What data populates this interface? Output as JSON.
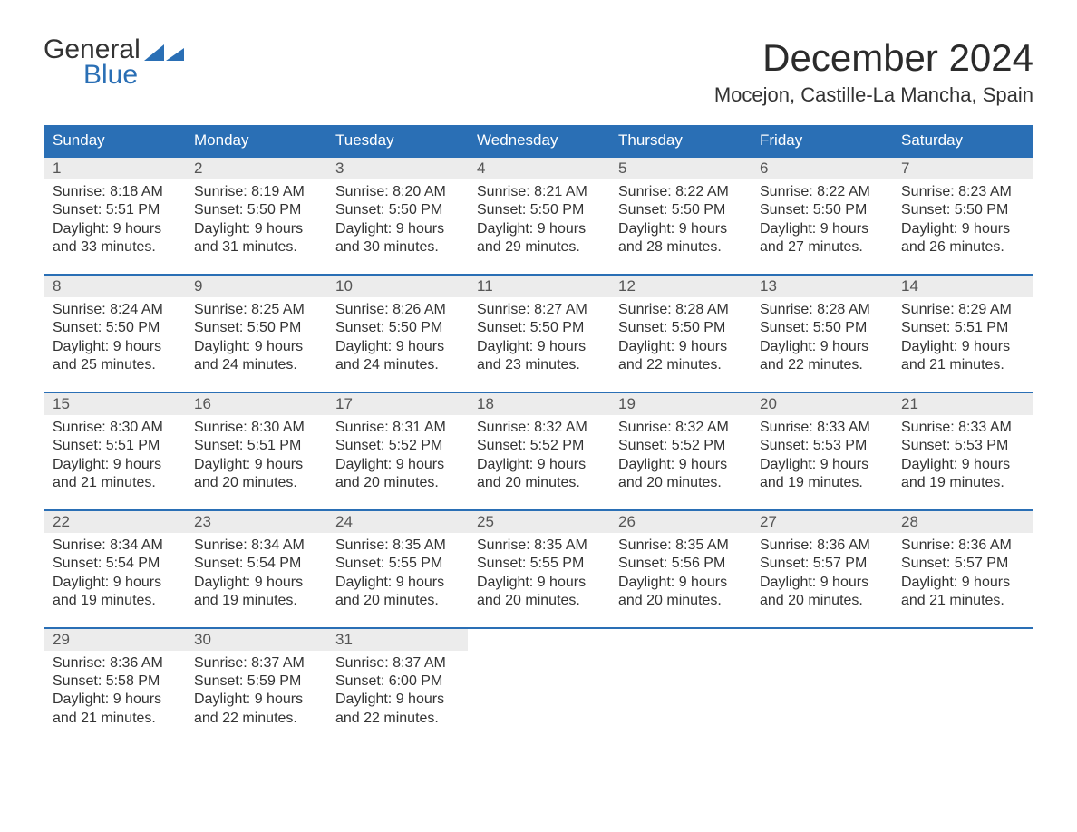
{
  "brand": {
    "word1": "General",
    "word2": "Blue",
    "tri_color": "#2a6fb5"
  },
  "title": "December 2024",
  "location": "Mocejon, Castille-La Mancha, Spain",
  "colors": {
    "header_bg": "#2a6fb5",
    "header_text": "#ffffff",
    "row_border": "#2a6fb5",
    "daynum_bg": "#ececec",
    "text": "#333333",
    "background": "#ffffff"
  },
  "font": {
    "family": "Arial",
    "body_size": 16,
    "title_size": 42,
    "location_size": 22,
    "header_size": 17
  },
  "weekdays": [
    "Sunday",
    "Monday",
    "Tuesday",
    "Wednesday",
    "Thursday",
    "Friday",
    "Saturday"
  ],
  "weeks": [
    [
      {
        "n": "1",
        "sr": "Sunrise: 8:18 AM",
        "ss": "Sunset: 5:51 PM",
        "d1": "Daylight: 9 hours",
        "d2": "and 33 minutes."
      },
      {
        "n": "2",
        "sr": "Sunrise: 8:19 AM",
        "ss": "Sunset: 5:50 PM",
        "d1": "Daylight: 9 hours",
        "d2": "and 31 minutes."
      },
      {
        "n": "3",
        "sr": "Sunrise: 8:20 AM",
        "ss": "Sunset: 5:50 PM",
        "d1": "Daylight: 9 hours",
        "d2": "and 30 minutes."
      },
      {
        "n": "4",
        "sr": "Sunrise: 8:21 AM",
        "ss": "Sunset: 5:50 PM",
        "d1": "Daylight: 9 hours",
        "d2": "and 29 minutes."
      },
      {
        "n": "5",
        "sr": "Sunrise: 8:22 AM",
        "ss": "Sunset: 5:50 PM",
        "d1": "Daylight: 9 hours",
        "d2": "and 28 minutes."
      },
      {
        "n": "6",
        "sr": "Sunrise: 8:22 AM",
        "ss": "Sunset: 5:50 PM",
        "d1": "Daylight: 9 hours",
        "d2": "and 27 minutes."
      },
      {
        "n": "7",
        "sr": "Sunrise: 8:23 AM",
        "ss": "Sunset: 5:50 PM",
        "d1": "Daylight: 9 hours",
        "d2": "and 26 minutes."
      }
    ],
    [
      {
        "n": "8",
        "sr": "Sunrise: 8:24 AM",
        "ss": "Sunset: 5:50 PM",
        "d1": "Daylight: 9 hours",
        "d2": "and 25 minutes."
      },
      {
        "n": "9",
        "sr": "Sunrise: 8:25 AM",
        "ss": "Sunset: 5:50 PM",
        "d1": "Daylight: 9 hours",
        "d2": "and 24 minutes."
      },
      {
        "n": "10",
        "sr": "Sunrise: 8:26 AM",
        "ss": "Sunset: 5:50 PM",
        "d1": "Daylight: 9 hours",
        "d2": "and 24 minutes."
      },
      {
        "n": "11",
        "sr": "Sunrise: 8:27 AM",
        "ss": "Sunset: 5:50 PM",
        "d1": "Daylight: 9 hours",
        "d2": "and 23 minutes."
      },
      {
        "n": "12",
        "sr": "Sunrise: 8:28 AM",
        "ss": "Sunset: 5:50 PM",
        "d1": "Daylight: 9 hours",
        "d2": "and 22 minutes."
      },
      {
        "n": "13",
        "sr": "Sunrise: 8:28 AM",
        "ss": "Sunset: 5:50 PM",
        "d1": "Daylight: 9 hours",
        "d2": "and 22 minutes."
      },
      {
        "n": "14",
        "sr": "Sunrise: 8:29 AM",
        "ss": "Sunset: 5:51 PM",
        "d1": "Daylight: 9 hours",
        "d2": "and 21 minutes."
      }
    ],
    [
      {
        "n": "15",
        "sr": "Sunrise: 8:30 AM",
        "ss": "Sunset: 5:51 PM",
        "d1": "Daylight: 9 hours",
        "d2": "and 21 minutes."
      },
      {
        "n": "16",
        "sr": "Sunrise: 8:30 AM",
        "ss": "Sunset: 5:51 PM",
        "d1": "Daylight: 9 hours",
        "d2": "and 20 minutes."
      },
      {
        "n": "17",
        "sr": "Sunrise: 8:31 AM",
        "ss": "Sunset: 5:52 PM",
        "d1": "Daylight: 9 hours",
        "d2": "and 20 minutes."
      },
      {
        "n": "18",
        "sr": "Sunrise: 8:32 AM",
        "ss": "Sunset: 5:52 PM",
        "d1": "Daylight: 9 hours",
        "d2": "and 20 minutes."
      },
      {
        "n": "19",
        "sr": "Sunrise: 8:32 AM",
        "ss": "Sunset: 5:52 PM",
        "d1": "Daylight: 9 hours",
        "d2": "and 20 minutes."
      },
      {
        "n": "20",
        "sr": "Sunrise: 8:33 AM",
        "ss": "Sunset: 5:53 PM",
        "d1": "Daylight: 9 hours",
        "d2": "and 19 minutes."
      },
      {
        "n": "21",
        "sr": "Sunrise: 8:33 AM",
        "ss": "Sunset: 5:53 PM",
        "d1": "Daylight: 9 hours",
        "d2": "and 19 minutes."
      }
    ],
    [
      {
        "n": "22",
        "sr": "Sunrise: 8:34 AM",
        "ss": "Sunset: 5:54 PM",
        "d1": "Daylight: 9 hours",
        "d2": "and 19 minutes."
      },
      {
        "n": "23",
        "sr": "Sunrise: 8:34 AM",
        "ss": "Sunset: 5:54 PM",
        "d1": "Daylight: 9 hours",
        "d2": "and 19 minutes."
      },
      {
        "n": "24",
        "sr": "Sunrise: 8:35 AM",
        "ss": "Sunset: 5:55 PM",
        "d1": "Daylight: 9 hours",
        "d2": "and 20 minutes."
      },
      {
        "n": "25",
        "sr": "Sunrise: 8:35 AM",
        "ss": "Sunset: 5:55 PM",
        "d1": "Daylight: 9 hours",
        "d2": "and 20 minutes."
      },
      {
        "n": "26",
        "sr": "Sunrise: 8:35 AM",
        "ss": "Sunset: 5:56 PM",
        "d1": "Daylight: 9 hours",
        "d2": "and 20 minutes."
      },
      {
        "n": "27",
        "sr": "Sunrise: 8:36 AM",
        "ss": "Sunset: 5:57 PM",
        "d1": "Daylight: 9 hours",
        "d2": "and 20 minutes."
      },
      {
        "n": "28",
        "sr": "Sunrise: 8:36 AM",
        "ss": "Sunset: 5:57 PM",
        "d1": "Daylight: 9 hours",
        "d2": "and 21 minutes."
      }
    ],
    [
      {
        "n": "29",
        "sr": "Sunrise: 8:36 AM",
        "ss": "Sunset: 5:58 PM",
        "d1": "Daylight: 9 hours",
        "d2": "and 21 minutes."
      },
      {
        "n": "30",
        "sr": "Sunrise: 8:37 AM",
        "ss": "Sunset: 5:59 PM",
        "d1": "Daylight: 9 hours",
        "d2": "and 22 minutes."
      },
      {
        "n": "31",
        "sr": "Sunrise: 8:37 AM",
        "ss": "Sunset: 6:00 PM",
        "d1": "Daylight: 9 hours",
        "d2": "and 22 minutes."
      },
      null,
      null,
      null,
      null
    ]
  ]
}
